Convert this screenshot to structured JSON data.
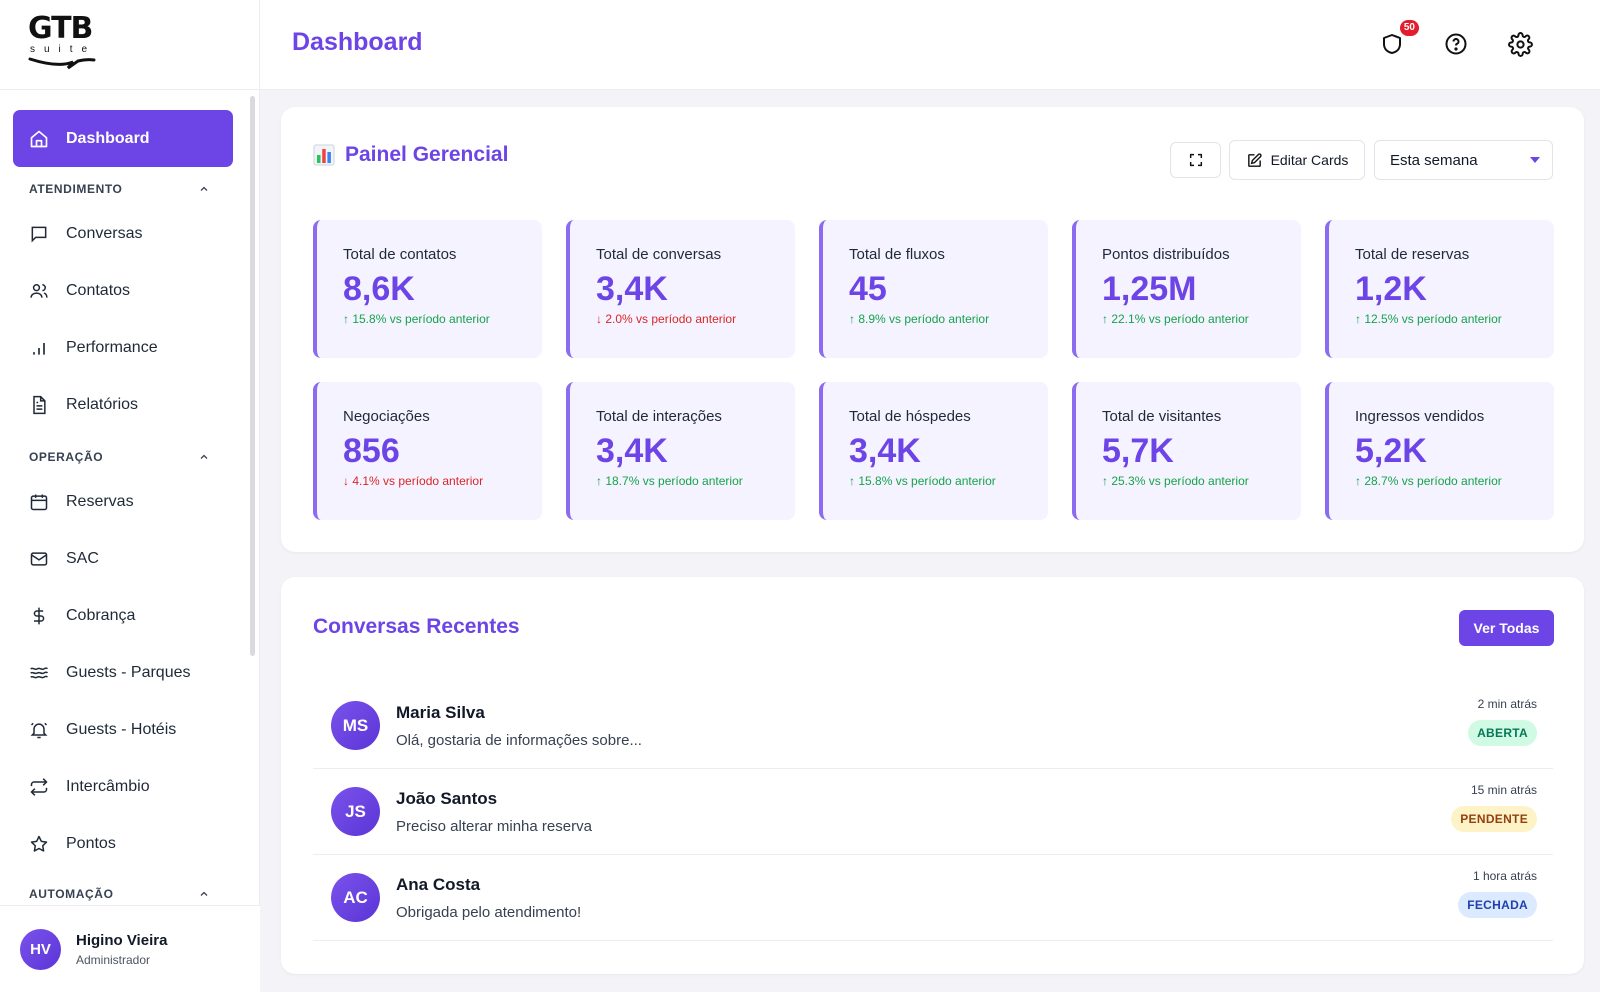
{
  "brand": {
    "logo_main": "GTB",
    "logo_sub": "suite"
  },
  "header": {
    "title": "Dashboard",
    "notifications_count": "50"
  },
  "sidebar": {
    "active_item": {
      "label": "Dashboard",
      "icon": "home-icon"
    },
    "sections": [
      {
        "title": "ATENDIMENTO",
        "items": [
          {
            "label": "Conversas",
            "icon": "message-square-icon"
          },
          {
            "label": "Contatos",
            "icon": "users-icon"
          },
          {
            "label": "Performance",
            "icon": "bar-chart-icon"
          },
          {
            "label": "Relatórios",
            "icon": "file-text-icon"
          }
        ]
      },
      {
        "title": "OPERAÇÃO",
        "items": [
          {
            "label": "Reservas",
            "icon": "calendar-icon"
          },
          {
            "label": "SAC",
            "icon": "mail-icon"
          },
          {
            "label": "Cobrança",
            "icon": "dollar-icon"
          },
          {
            "label": "Guests - Parques",
            "icon": "waves-icon"
          },
          {
            "label": "Guests - Hotéis",
            "icon": "bell-icon"
          },
          {
            "label": "Intercâmbio",
            "icon": "repeat-icon"
          },
          {
            "label": "Pontos",
            "icon": "star-icon"
          }
        ]
      },
      {
        "title": "AUTOMAÇÃO",
        "items": []
      }
    ],
    "user": {
      "initials": "HV",
      "name": "Higino Vieira",
      "role": "Administrador"
    }
  },
  "panel": {
    "title": "Painel Gerencial",
    "edit_label": "Editar Cards",
    "period_selected": "Esta semana",
    "stats": [
      {
        "label": "Total de contatos",
        "value": "8,6K",
        "trend": "up",
        "change": "↑ 15.8% vs período anterior"
      },
      {
        "label": "Total de conversas",
        "value": "3,4K",
        "trend": "down",
        "change": "↓ 2.0% vs período anterior"
      },
      {
        "label": "Total de fluxos",
        "value": "45",
        "trend": "up",
        "change": "↑ 8.9% vs período anterior"
      },
      {
        "label": "Pontos distribuídos",
        "value": "1,25M",
        "trend": "up",
        "change": "↑ 22.1% vs período anterior"
      },
      {
        "label": "Total de reservas",
        "value": "1,2K",
        "trend": "up",
        "change": "↑ 12.5% vs período anterior"
      },
      {
        "label": "Negociações",
        "value": "856",
        "trend": "down",
        "change": "↓ 4.1% vs período anterior"
      },
      {
        "label": "Total de interações",
        "value": "3,4K",
        "trend": "up",
        "change": "↑ 18.7% vs período anterior"
      },
      {
        "label": "Total de hóspedes",
        "value": "3,4K",
        "trend": "up",
        "change": "↑ 15.8% vs período anterior"
      },
      {
        "label": "Total de visitantes",
        "value": "5,7K",
        "trend": "up",
        "change": "↑ 25.3% vs período anterior"
      },
      {
        "label": "Ingressos vendidos",
        "value": "5,2K",
        "trend": "up",
        "change": "↑ 28.7% vs período anterior"
      }
    ]
  },
  "recent": {
    "title": "Conversas Recentes",
    "view_all_label": "Ver Todas",
    "items": [
      {
        "initials": "MS",
        "name": "Maria Silva",
        "message": "Olá, gostaria de informações sobre...",
        "time": "2 min atrás",
        "status": "ABERTA",
        "status_kind": "open"
      },
      {
        "initials": "JS",
        "name": "João Santos",
        "message": "Preciso alterar minha reserva",
        "time": "15 min atrás",
        "status": "PENDENTE",
        "status_kind": "pend"
      },
      {
        "initials": "AC",
        "name": "Ana Costa",
        "message": "Obrigada pelo atendimento!",
        "time": "1 hora atrás",
        "status": "FECHADA",
        "status_kind": "closed"
      }
    ]
  },
  "colors": {
    "accent": "#6d44e6",
    "up": "#16a34a",
    "down": "#dc2626"
  }
}
